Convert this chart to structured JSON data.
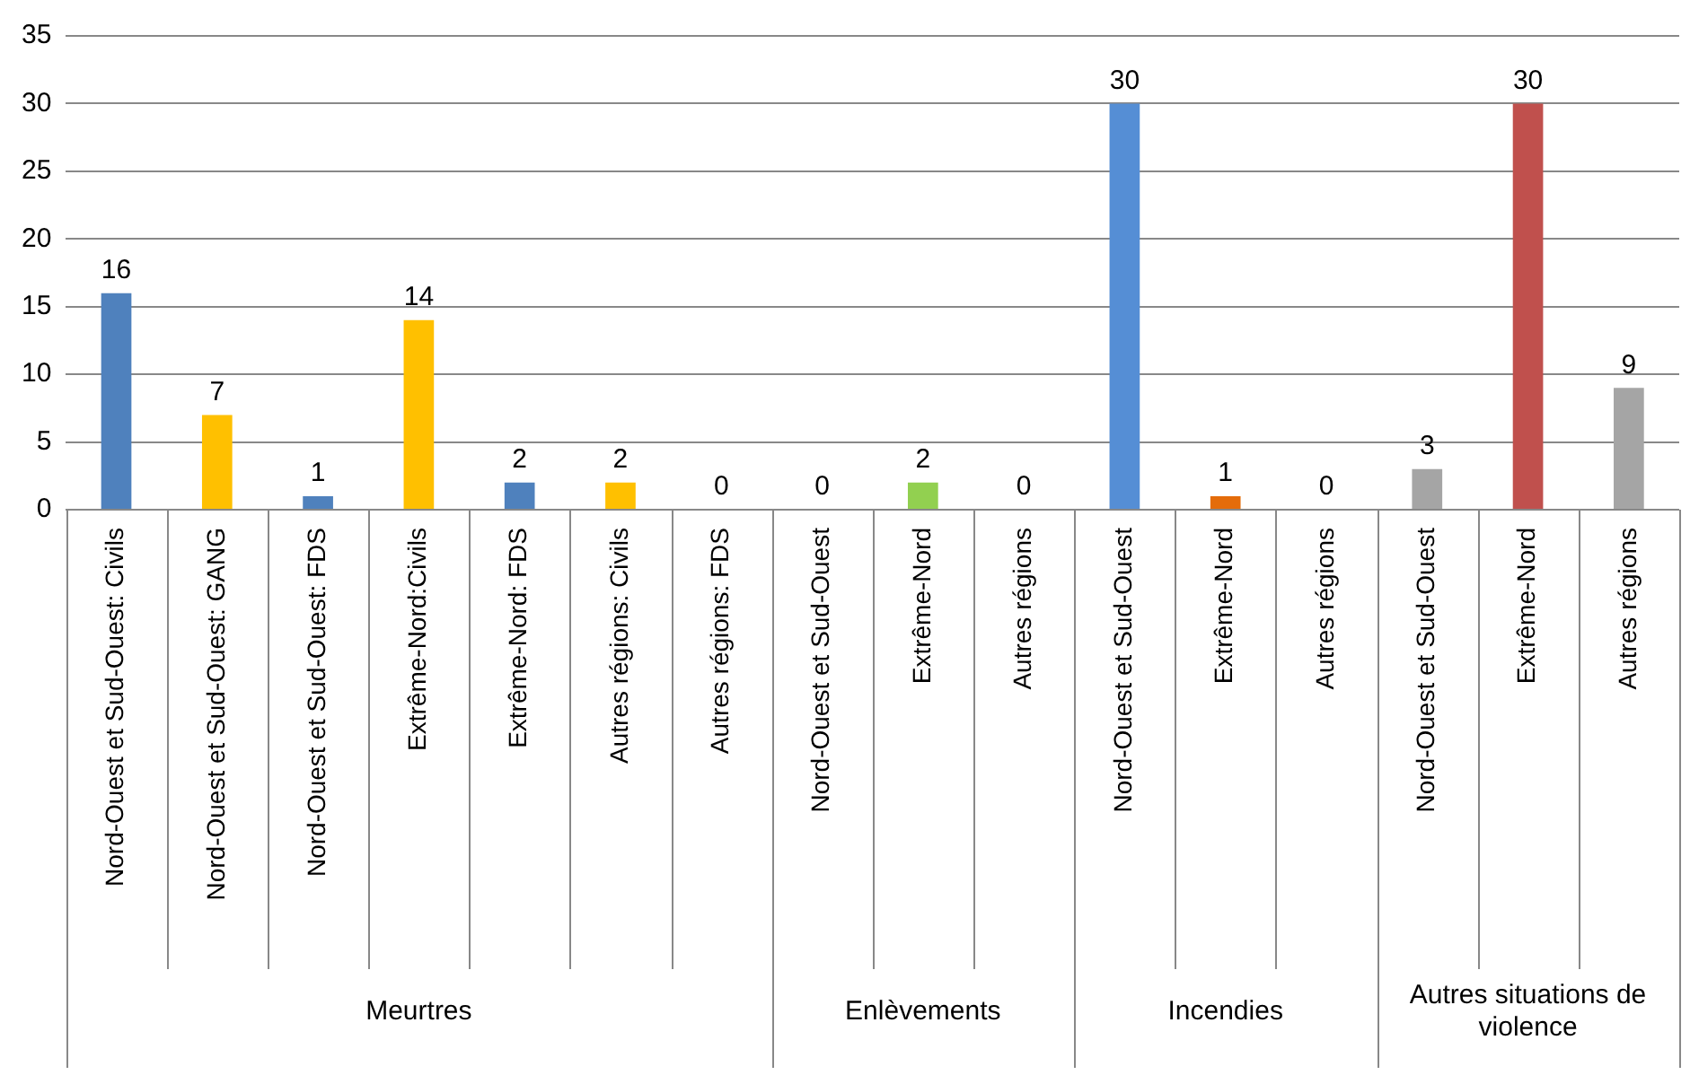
{
  "chart_data": {
    "type": "bar",
    "categories": [
      "Nord-Ouest et Sud-Ouest: Civils",
      "Nord-Ouest et Sud-Ouest: GANG",
      "Nord-Ouest et Sud-Ouest: FDS",
      "Extrême-Nord:Civils",
      "Extrême-Nord: FDS",
      "Autres régions: Civils",
      "Autres régions: FDS",
      "Nord-Ouest et Sud-Ouest",
      "Extrême-Nord",
      "Autres régions",
      "Nord-Ouest et Sud-Ouest",
      "Extrême-Nord",
      "Autres régions",
      "Nord-Ouest et Sud-Ouest",
      "Extrême-Nord",
      "Autres régions"
    ],
    "values": [
      16,
      7,
      1,
      14,
      2,
      2,
      0,
      0,
      2,
      0,
      30,
      1,
      0,
      3,
      30,
      9
    ],
    "colors": [
      "#4f81bd",
      "#ffc000",
      "#4f81bd",
      "#ffc000",
      "#4f81bd",
      "#ffc000",
      "#4f81bd",
      "#4f81bd",
      "#92d050",
      "#4f81bd",
      "#558ed5",
      "#e46c0a",
      "#4f81bd",
      "#a5a5a5",
      "#c0504d",
      "#a5a5a5"
    ],
    "ylim": [
      0,
      35
    ],
    "yticks": [
      0,
      5,
      10,
      15,
      20,
      25,
      30,
      35
    ],
    "grid": "y",
    "legend": false,
    "data_labels": true,
    "annotations": [
      "Meurtres",
      "Enlèvements",
      "Incendies",
      "Autres situations de violence"
    ]
  }
}
